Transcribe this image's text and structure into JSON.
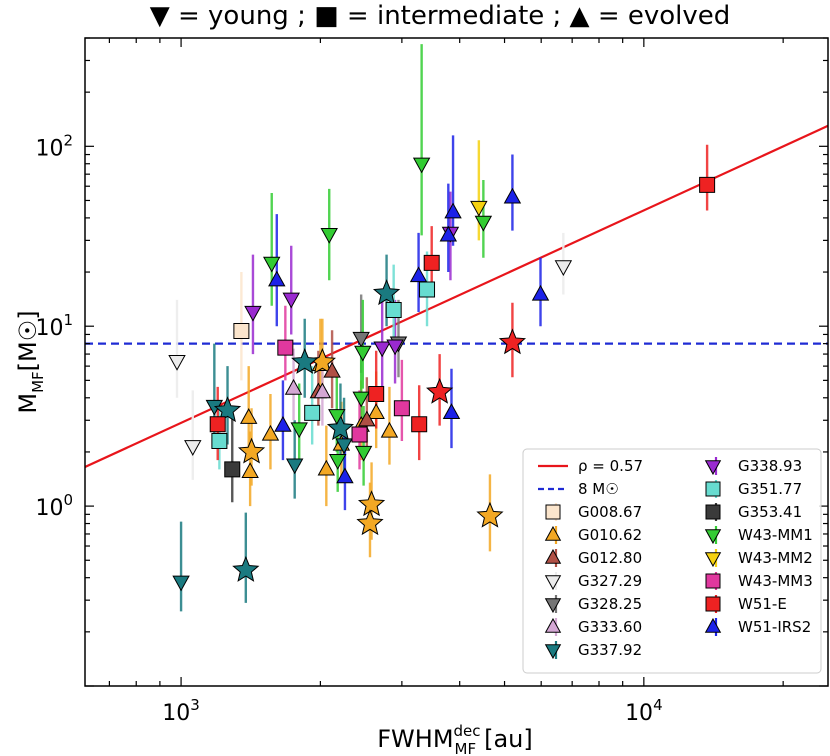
{
  "chart_data": {
    "type": "scatter",
    "title": "▼ = young ; ■ = intermediate ; ▲ = evolved",
    "xlabel": "FWHM",
    "xlabel_sup": "dec",
    "xlabel_sub": "MF",
    "xlabel_unit": "[au]",
    "ylabel": "M",
    "ylabel_sub": "MF",
    "ylabel_unit": "[M☉]",
    "xscale": "log",
    "yscale": "log",
    "xlim": [
      620,
      25000
    ],
    "ylim": [
      0.1,
      400
    ],
    "x_ticks": [
      {
        "value": 1000,
        "base": "10",
        "exp": "3"
      },
      {
        "value": 10000,
        "base": "10",
        "exp": "4"
      }
    ],
    "y_ticks": [
      {
        "value": 1,
        "base": "10",
        "exp": "0"
      },
      {
        "value": 10,
        "base": "10",
        "exp": "1"
      },
      {
        "value": 100,
        "base": "10",
        "exp": "2"
      }
    ],
    "fit_line": {
      "label": "ρ = 0.57",
      "color": "#e8151b",
      "x": [
        620,
        25000
      ],
      "y": [
        1.65,
        130
      ]
    },
    "threshold": {
      "label": "8 M☉",
      "color": "#1f2bd4",
      "y": 8
    },
    "legend_position": "lower-right",
    "series": [
      {
        "name": "G008.67",
        "color": "#fbe5cc",
        "points": [
          {
            "x": 1350,
            "y": 9.4,
            "m": "s",
            "lo": 5,
            "hi": 20
          }
        ]
      },
      {
        "name": "G010.62",
        "color": "#f3a824",
        "points": [
          {
            "x": 1400,
            "y": 3.1,
            "m": "^",
            "lo": 2,
            "hi": 6
          },
          {
            "x": 1410,
            "y": 1.55,
            "m": "^",
            "lo": 1,
            "hi": 2.6
          },
          {
            "x": 1560,
            "y": 2.5,
            "m": "^",
            "lo": 1.6,
            "hi": 4.2
          },
          {
            "x": 2060,
            "y": 1.6,
            "m": "^",
            "lo": 1,
            "hi": 2.8
          },
          {
            "x": 2220,
            "y": 2.2,
            "m": "^",
            "lo": 1.4,
            "hi": 3.8
          },
          {
            "x": 2000,
            "y": 6.1,
            "m": "^",
            "lo": 4,
            "hi": 11
          },
          {
            "x": 2450,
            "y": 2.8,
            "m": "^",
            "lo": 1.8,
            "hi": 5
          },
          {
            "x": 2640,
            "y": 3.3,
            "m": "^",
            "lo": 2.1,
            "hi": 5.6
          },
          {
            "x": 2820,
            "y": 2.6,
            "m": "^",
            "lo": 1.7,
            "hi": 4.6
          },
          {
            "x": 1420,
            "y": 2.0,
            "m": "*",
            "lo": 1.3,
            "hi": 3.5
          },
          {
            "x": 2020,
            "y": 6.3,
            "m": "*",
            "lo": 4,
            "hi": 11
          },
          {
            "x": 2580,
            "y": 1.02,
            "m": "*",
            "lo": 0.65,
            "hi": 1.75
          },
          {
            "x": 2560,
            "y": 0.8,
            "m": "*",
            "lo": 0.52,
            "hi": 1.35
          },
          {
            "x": 4650,
            "y": 0.88,
            "m": "*",
            "lo": 0.56,
            "hi": 1.5
          }
        ]
      },
      {
        "name": "G012.80",
        "color": "#b05045",
        "points": [
          {
            "x": 2120,
            "y": 5.6,
            "m": "^",
            "lo": 3.5,
            "hi": 9.5
          },
          {
            "x": 1980,
            "y": 4.3,
            "m": "^",
            "lo": 2.8,
            "hi": 7.3
          },
          {
            "x": 2520,
            "y": 3.0,
            "m": "^",
            "lo": 2,
            "hi": 5.2
          }
        ]
      },
      {
        "name": "G327.29",
        "color": "#ececec",
        "points": [
          {
            "x": 980,
            "y": 6.4,
            "m": "v",
            "lo": 4,
            "hi": 14
          },
          {
            "x": 1060,
            "y": 2.15,
            "m": "v",
            "lo": 1.4,
            "hi": 4.4
          },
          {
            "x": 6700,
            "y": 21.5,
            "m": "v",
            "lo": 15,
            "hi": 33
          }
        ]
      },
      {
        "name": "G328.25",
        "color": "#757575",
        "points": [
          {
            "x": 2450,
            "y": 8.6,
            "m": "v",
            "lo": 5.5,
            "hi": 15
          },
          {
            "x": 2950,
            "y": 8.1,
            "m": "v",
            "lo": 5.2,
            "hi": 14
          }
        ]
      },
      {
        "name": "G333.60",
        "color": "#d4a7d4",
        "points": [
          {
            "x": 1750,
            "y": 4.5,
            "m": "^",
            "lo": 3,
            "hi": 7.5
          },
          {
            "x": 2020,
            "y": 4.3,
            "m": "^",
            "lo": 2.8,
            "hi": 7
          }
        ]
      },
      {
        "name": "G337.92",
        "color": "#1a7a80",
        "points": [
          {
            "x": 1000,
            "y": 0.38,
            "m": "v",
            "lo": 0.26,
            "hi": 0.82
          },
          {
            "x": 1180,
            "y": 3.6,
            "m": "v",
            "lo": 2.4,
            "hi": 8
          },
          {
            "x": 1260,
            "y": 3.4,
            "m": "*",
            "lo": 2.2,
            "hi": 6
          },
          {
            "x": 1380,
            "y": 0.44,
            "m": "*",
            "lo": 0.29,
            "hi": 0.92
          },
          {
            "x": 1850,
            "y": 6.3,
            "m": "*",
            "lo": 4,
            "hi": 11
          },
          {
            "x": 2210,
            "y": 2.7,
            "m": "*",
            "lo": 1.8,
            "hi": 4.8
          },
          {
            "x": 2250,
            "y": 2.2,
            "m": "v",
            "lo": 1.5,
            "hi": 4
          },
          {
            "x": 2780,
            "y": 15.2,
            "m": "*",
            "lo": 10,
            "hi": 25
          },
          {
            "x": 1760,
            "y": 1.7,
            "m": "v",
            "lo": 1.1,
            "hi": 3
          }
        ]
      },
      {
        "name": "G338.93",
        "color": "#9a2ad0",
        "points": [
          {
            "x": 1430,
            "y": 12.0,
            "m": "v",
            "lo": 7,
            "hi": 25
          },
          {
            "x": 1730,
            "y": 14.2,
            "m": "v",
            "lo": 9,
            "hi": 28
          },
          {
            "x": 2720,
            "y": 7.6,
            "m": "v",
            "lo": 4.5,
            "hi": 14
          },
          {
            "x": 2900,
            "y": 7.8,
            "m": "v",
            "lo": 4.8,
            "hi": 14
          },
          {
            "x": 3820,
            "y": 33.0,
            "m": "v",
            "lo": 18,
            "hi": 56
          }
        ]
      },
      {
        "name": "G351.77",
        "color": "#67dcd0",
        "points": [
          {
            "x": 1210,
            "y": 2.3,
            "m": "s",
            "lo": 1.6,
            "hi": 3.6
          },
          {
            "x": 1920,
            "y": 3.3,
            "m": "s",
            "lo": 2.2,
            "hi": 6
          },
          {
            "x": 2880,
            "y": 12.3,
            "m": "s",
            "lo": 8,
            "hi": 22
          },
          {
            "x": 3400,
            "y": 16.0,
            "m": "s",
            "lo": 10,
            "hi": 26
          }
        ]
      },
      {
        "name": "G353.41",
        "color": "#3a3a3a",
        "points": [
          {
            "x": 1290,
            "y": 1.6,
            "m": "s",
            "lo": 1.05,
            "hi": 3.3
          }
        ]
      },
      {
        "name": "W43-MM1",
        "color": "#33cc33",
        "points": [
          {
            "x": 1570,
            "y": 22.5,
            "m": "v",
            "lo": 13,
            "hi": 55
          },
          {
            "x": 2090,
            "y": 32.5,
            "m": "v",
            "lo": 18,
            "hi": 58
          },
          {
            "x": 3310,
            "y": 80.0,
            "m": "v",
            "lo": 32,
            "hi": 370
          },
          {
            "x": 4500,
            "y": 38.0,
            "m": "v",
            "lo": 24,
            "hi": 65
          },
          {
            "x": 2470,
            "y": 7.2,
            "m": "v",
            "lo": 4.5,
            "hi": 14
          },
          {
            "x": 2450,
            "y": 4.0,
            "m": "v",
            "lo": 2.6,
            "hi": 7.5
          },
          {
            "x": 2180,
            "y": 1.8,
            "m": "v",
            "lo": 1.2,
            "hi": 3.2
          },
          {
            "x": 2480,
            "y": 2.0,
            "m": "v",
            "lo": 1.3,
            "hi": 3.6
          },
          {
            "x": 1800,
            "y": 2.7,
            "m": "v",
            "lo": 1.7,
            "hi": 4.8
          },
          {
            "x": 2170,
            "y": 3.2,
            "m": "v",
            "lo": 2,
            "hi": 5.5
          }
        ]
      },
      {
        "name": "W43-MM2",
        "color": "#f5d10f",
        "points": [
          {
            "x": 4400,
            "y": 46.0,
            "m": "v",
            "lo": 30,
            "hi": 108
          }
        ]
      },
      {
        "name": "W43-MM3",
        "color": "#e0389e",
        "points": [
          {
            "x": 1680,
            "y": 7.6,
            "m": "s",
            "lo": 5,
            "hi": 13
          },
          {
            "x": 2430,
            "y": 2.5,
            "m": "s",
            "lo": 1.6,
            "hi": 4.4
          },
          {
            "x": 3000,
            "y": 3.5,
            "m": "s",
            "lo": 2.3,
            "hi": 6.5
          }
        ]
      },
      {
        "name": "W51-E",
        "color": "#ee2222",
        "points": [
          {
            "x": 1200,
            "y": 2.85,
            "m": "s",
            "lo": 1.8,
            "hi": 4.6
          },
          {
            "x": 2640,
            "y": 4.2,
            "m": "s",
            "lo": 2.7,
            "hi": 7.3
          },
          {
            "x": 3270,
            "y": 2.85,
            "m": "s",
            "lo": 1.8,
            "hi": 4.7
          },
          {
            "x": 3480,
            "y": 22.5,
            "m": "s",
            "lo": 15,
            "hi": 36
          },
          {
            "x": 3620,
            "y": 4.3,
            "m": "*",
            "lo": 2.8,
            "hi": 7
          },
          {
            "x": 5200,
            "y": 8.1,
            "m": "*",
            "lo": 5.2,
            "hi": 13.5
          },
          {
            "x": 13700,
            "y": 61.0,
            "m": "s",
            "lo": 44,
            "hi": 102
          }
        ]
      },
      {
        "name": "W51-IRS2",
        "color": "#1c22e8",
        "points": [
          {
            "x": 1610,
            "y": 18.0,
            "m": "^",
            "lo": 10,
            "hi": 42
          },
          {
            "x": 1660,
            "y": 2.8,
            "m": "^",
            "lo": 1.8,
            "hi": 5
          },
          {
            "x": 2260,
            "y": 1.45,
            "m": "^",
            "lo": 0.95,
            "hi": 2.5
          },
          {
            "x": 3260,
            "y": 19.0,
            "m": "^",
            "lo": 12,
            "hi": 33
          },
          {
            "x": 3780,
            "y": 32.0,
            "m": "^",
            "lo": 20,
            "hi": 62
          },
          {
            "x": 3870,
            "y": 43.0,
            "m": "^",
            "lo": 28,
            "hi": 115
          },
          {
            "x": 3840,
            "y": 3.3,
            "m": "^",
            "lo": 2.1,
            "hi": 5.8
          },
          {
            "x": 5200,
            "y": 52.0,
            "m": "^",
            "lo": 34,
            "hi": 90
          },
          {
            "x": 5980,
            "y": 15.0,
            "m": "^",
            "lo": 10,
            "hi": 24
          }
        ]
      }
    ],
    "legend_entries": [
      {
        "label": "ρ = 0.57",
        "kind": "line",
        "color": "#e8151b",
        "col": 0,
        "row": 0
      },
      {
        "label": "8 M☉",
        "kind": "dash",
        "color": "#1f2bd4",
        "col": 0,
        "row": 1
      },
      {
        "label": "G008.67",
        "kind": "s",
        "color": "#fbe5cc",
        "col": 0,
        "row": 2
      },
      {
        "label": "G010.62",
        "kind": "^",
        "color": "#f3a824",
        "col": 0,
        "row": 3
      },
      {
        "label": "G012.80",
        "kind": "^",
        "color": "#b05045",
        "col": 0,
        "row": 4
      },
      {
        "label": "G327.29",
        "kind": "v",
        "color": "#ececec",
        "col": 0,
        "row": 5
      },
      {
        "label": "G328.25",
        "kind": "v",
        "color": "#757575",
        "col": 0,
        "row": 6
      },
      {
        "label": "G333.60",
        "kind": "^",
        "color": "#d4a7d4",
        "col": 0,
        "row": 7
      },
      {
        "label": "G337.92",
        "kind": "v",
        "color": "#1a7a80",
        "col": 0,
        "row": 8
      },
      {
        "label": "G338.93",
        "kind": "v",
        "color": "#9a2ad0",
        "col": 1,
        "row": 0
      },
      {
        "label": "G351.77",
        "kind": "s",
        "color": "#67dcd0",
        "col": 1,
        "row": 1
      },
      {
        "label": "G353.41",
        "kind": "s",
        "color": "#3a3a3a",
        "col": 1,
        "row": 2
      },
      {
        "label": "W43-MM1",
        "kind": "v",
        "color": "#33cc33",
        "col": 1,
        "row": 3
      },
      {
        "label": "W43-MM2",
        "kind": "v",
        "color": "#f5d10f",
        "col": 1,
        "row": 4
      },
      {
        "label": "W43-MM3",
        "kind": "s",
        "color": "#e0389e",
        "col": 1,
        "row": 5
      },
      {
        "label": "W51-E",
        "kind": "s",
        "color": "#ee2222",
        "col": 1,
        "row": 6
      },
      {
        "label": "W51-IRS2",
        "kind": "^",
        "color": "#1c22e8",
        "col": 1,
        "row": 7
      }
    ]
  }
}
